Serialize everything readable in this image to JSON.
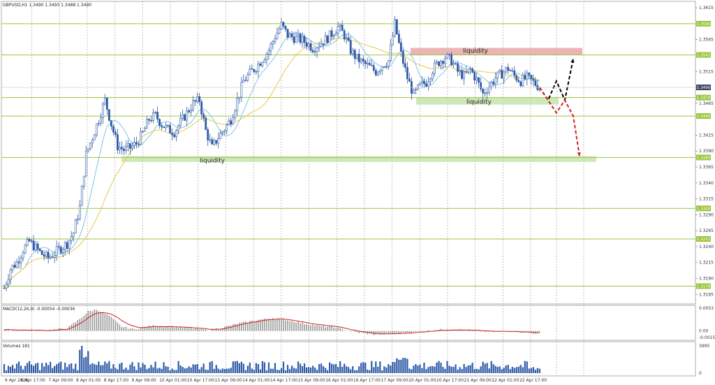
{
  "chart_data": {
    "type": "candlestick",
    "symbol_header": "GBPUSD,H1  1.3490 1.3493 1.3488 1.3490",
    "price_axis": {
      "ylim": [
        1.315,
        1.3625
      ],
      "ticks": [
        "1.3615",
        "1.3565",
        "1.3515",
        "1.3465",
        "1.3415",
        "1.3390",
        "1.3365",
        "1.3340",
        "1.3315",
        "1.3290",
        "1.3265",
        "1.3240",
        "1.3215",
        "1.3190",
        "1.3165"
      ],
      "tick_values": [
        1.3615,
        1.3565,
        1.3515,
        1.3465,
        1.3415,
        1.339,
        1.3365,
        1.334,
        1.3315,
        1.329,
        1.3265,
        1.324,
        1.3215,
        1.319,
        1.3165
      ],
      "current_price": "1.3490"
    },
    "time_axis": {
      "labels": [
        "6 Apr 2026",
        "6 Apr 17:00",
        "7 Apr 09:00",
        "8 Apr 01:00",
        "8 Apr 17:00",
        "9 Apr 09:00",
        "10 Apr 01:00",
        "10 Apr 17:00",
        "13 Apr 09:00",
        "14 Apr 01:00",
        "14 Apr 17:00",
        "15 Apr 09:00",
        "16 Apr 01:00",
        "16 Apr 17:00",
        "17 Apr 09:00",
        "20 Apr 01:00",
        "20 Apr 17:00",
        "21 Apr 09:00",
        "22 Apr 01:00",
        "22 Apr 17:00"
      ]
    },
    "levels": [
      {
        "label": "1.3590",
        "value": 1.359
      },
      {
        "label": "1.3541",
        "value": 1.3541
      },
      {
        "label": "1.3474",
        "value": 1.3474
      },
      {
        "label": "1.3445",
        "value": 1.3445
      },
      {
        "label": "1.3380",
        "value": 1.338
      },
      {
        "label": "1.3300",
        "value": 1.33
      },
      {
        "label": "1.3252",
        "value": 1.3252
      },
      {
        "label": "1.3178",
        "value": 1.3178
      }
    ],
    "zones": [
      {
        "label": "liquidity",
        "kind": "supply",
        "color": "#e8a8a8",
        "from": 1.3541,
        "to": 1.3552
      },
      {
        "label": "liquidity",
        "kind": "demand",
        "color": "#c7e4ad",
        "from": 1.3463,
        "to": 1.3474
      },
      {
        "label": "liquidity",
        "kind": "demand",
        "color": "#c7e4ad",
        "from": 1.3373,
        "to": 1.3382
      }
    ],
    "price_path": [
      [
        0,
        1.3175
      ],
      [
        3,
        1.3205
      ],
      [
        6,
        1.3215
      ],
      [
        9,
        1.3235
      ],
      [
        12,
        1.3248
      ],
      [
        15,
        1.3238
      ],
      [
        18,
        1.3228
      ],
      [
        21,
        1.3222
      ],
      [
        24,
        1.323
      ],
      [
        27,
        1.3238
      ],
      [
        30,
        1.3245
      ],
      [
        33,
        1.3262
      ],
      [
        36,
        1.3302
      ],
      [
        39,
        1.3385
      ],
      [
        42,
        1.3412
      ],
      [
        45,
        1.344
      ],
      [
        48,
        1.347
      ],
      [
        51,
        1.3432
      ],
      [
        54,
        1.3398
      ],
      [
        57,
        1.3392
      ],
      [
        60,
        1.3395
      ],
      [
        63,
        1.3402
      ],
      [
        66,
        1.3418
      ],
      [
        69,
        1.344
      ],
      [
        72,
        1.3446
      ],
      [
        75,
        1.3432
      ],
      [
        78,
        1.3424
      ],
      [
        81,
        1.342
      ],
      [
        84,
        1.3435
      ],
      [
        87,
        1.345
      ],
      [
        90,
        1.3465
      ],
      [
        93,
        1.347
      ],
      [
        96,
        1.3422
      ],
      [
        99,
        1.3395
      ],
      [
        102,
        1.3412
      ],
      [
        105,
        1.3425
      ],
      [
        108,
        1.344
      ],
      [
        111,
        1.347
      ],
      [
        114,
        1.35
      ],
      [
        117,
        1.3512
      ],
      [
        120,
        1.3522
      ],
      [
        123,
        1.3535
      ],
      [
        126,
        1.3548
      ],
      [
        129,
        1.357
      ],
      [
        132,
        1.3588
      ],
      [
        135,
        1.3572
      ],
      [
        138,
        1.3568
      ],
      [
        141,
        1.3565
      ],
      [
        144,
        1.356
      ],
      [
        147,
        1.3552
      ],
      [
        150,
        1.3558
      ],
      [
        153,
        1.3565
      ],
      [
        156,
        1.3574
      ],
      [
        159,
        1.3585
      ],
      [
        162,
        1.3572
      ],
      [
        165,
        1.3548
      ],
      [
        168,
        1.3535
      ],
      [
        171,
        1.3528
      ],
      [
        174,
        1.3522
      ],
      [
        177,
        1.3515
      ],
      [
        180,
        1.3525
      ],
      [
        183,
        1.3532
      ],
      [
        186,
        1.359
      ],
      [
        189,
        1.3542
      ],
      [
        192,
        1.3505
      ],
      [
        195,
        1.3478
      ],
      [
        198,
        1.3492
      ],
      [
        201,
        1.3498
      ],
      [
        204,
        1.3518
      ],
      [
        207,
        1.353
      ],
      [
        210,
        1.3538
      ],
      [
        213,
        1.3532
      ],
      [
        216,
        1.3515
      ],
      [
        219,
        1.3508
      ],
      [
        222,
        1.3518
      ],
      [
        225,
        1.3502
      ],
      [
        228,
        1.348
      ],
      [
        231,
        1.3492
      ],
      [
        234,
        1.3505
      ],
      [
        237,
        1.3512
      ],
      [
        240,
        1.352
      ],
      [
        243,
        1.3508
      ],
      [
        246,
        1.35
      ],
      [
        249,
        1.3505
      ],
      [
        252,
        1.3498
      ],
      [
        255,
        1.349
      ]
    ],
    "moving_averages": [
      {
        "color": "#7fc4e6",
        "role": "fast",
        "lag": 10
      },
      {
        "color": "#e6c84a",
        "role": "slow",
        "lag": 28
      }
    ],
    "projections": [
      {
        "color": "#000000",
        "style": "dashed",
        "points": [
          [
            255,
            1.349
          ],
          [
            259,
            1.347
          ],
          [
            263,
            1.35
          ],
          [
            267,
            1.347
          ],
          [
            271,
            1.3535
          ]
        ]
      },
      {
        "color": "#cc2222",
        "style": "dashed",
        "points": [
          [
            255,
            1.349
          ],
          [
            259,
            1.347
          ],
          [
            263,
            1.345
          ],
          [
            267,
            1.347
          ],
          [
            271,
            1.3445
          ],
          [
            274,
            1.3382
          ]
        ]
      }
    ],
    "macd": {
      "label": "MACD(12,26,9) -0.00054 -0.00036",
      "ticks": [
        "0.0053",
        "0.00",
        "-0.0015"
      ],
      "tick_values": [
        0.0053,
        0.0,
        -0.0015
      ],
      "signal_color": "#cc2222",
      "histogram_color": "#999999",
      "path": [
        [
          0,
          0.0003
        ],
        [
          20,
          0.0001
        ],
        [
          30,
          0.0006
        ],
        [
          36,
          0.0028
        ],
        [
          40,
          0.0045
        ],
        [
          44,
          0.005
        ],
        [
          50,
          0.0035
        ],
        [
          56,
          0.001
        ],
        [
          62,
          0.0004
        ],
        [
          70,
          0.0012
        ],
        [
          80,
          0.001
        ],
        [
          90,
          0.0006
        ],
        [
          98,
          0.0002
        ],
        [
          104,
          0.0008
        ],
        [
          112,
          0.0018
        ],
        [
          120,
          0.0025
        ],
        [
          128,
          0.003
        ],
        [
          134,
          0.0026
        ],
        [
          142,
          0.0018
        ],
        [
          150,
          0.0012
        ],
        [
          158,
          0.0008
        ],
        [
          166,
          -0.0002
        ],
        [
          176,
          -0.0008
        ],
        [
          186,
          -0.0006
        ],
        [
          196,
          -0.0002
        ],
        [
          206,
          0.0003
        ],
        [
          214,
          0.0004
        ],
        [
          222,
          0.0001
        ],
        [
          232,
          -0.0002
        ],
        [
          242,
          0.0
        ],
        [
          250,
          -0.0004
        ],
        [
          255,
          -0.0005
        ]
      ]
    },
    "volumes": {
      "label": "Volumes 181",
      "ticks": [
        "3995",
        "0"
      ],
      "tick_values": [
        3995,
        0
      ],
      "color": "#2f5ba7"
    }
  }
}
